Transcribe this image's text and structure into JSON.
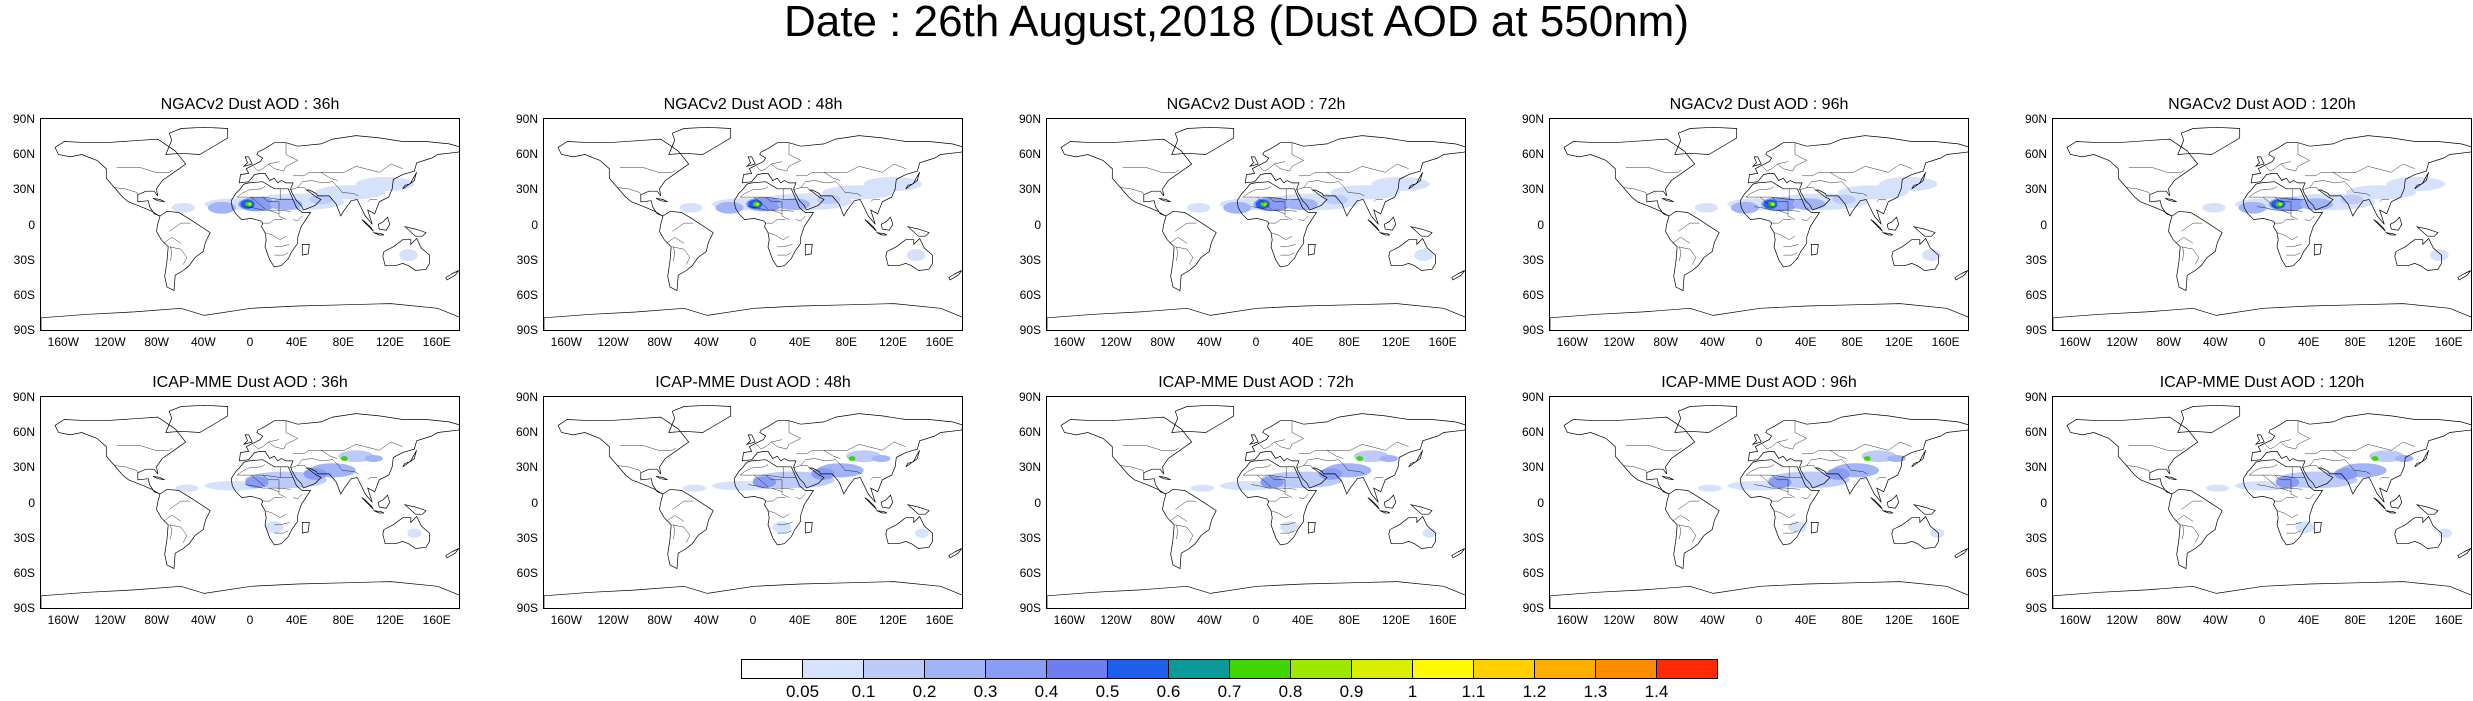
{
  "title": "Date : 26th August,2018 (Dust AOD at 550nm)",
  "lat_labels": [
    "90N",
    "60N",
    "30N",
    "0",
    "30S",
    "60S",
    "90S"
  ],
  "lon_labels": [
    "160W",
    "120W",
    "80W",
    "40W",
    "0",
    "40E",
    "80E",
    "120E",
    "160E"
  ],
  "panels": [
    {
      "title": "NGACv2 Dust AOD : 36h",
      "row": 0,
      "col": 0
    },
    {
      "title": "NGACv2 Dust AOD : 48h",
      "row": 0,
      "col": 1
    },
    {
      "title": "NGACv2 Dust AOD : 72h",
      "row": 0,
      "col": 2
    },
    {
      "title": "NGACv2 Dust AOD : 96h",
      "row": 0,
      "col": 3
    },
    {
      "title": "NGACv2 Dust AOD : 120h",
      "row": 0,
      "col": 4
    },
    {
      "title": "ICAP-MME Dust AOD : 36h",
      "row": 1,
      "col": 0
    },
    {
      "title": "ICAP-MME Dust AOD : 48h",
      "row": 1,
      "col": 1
    },
    {
      "title": "ICAP-MME Dust AOD : 72h",
      "row": 1,
      "col": 2
    },
    {
      "title": "ICAP-MME Dust AOD : 96h",
      "row": 1,
      "col": 3
    },
    {
      "title": "ICAP-MME Dust AOD : 120h",
      "row": 1,
      "col": 4
    }
  ],
  "colorbar": {
    "labels": [
      "0.05",
      "0.1",
      "0.2",
      "0.3",
      "0.4",
      "0.5",
      "0.6",
      "0.7",
      "0.8",
      "0.9",
      "1",
      "1.1",
      "1.2",
      "1.3",
      "1.4"
    ],
    "colors": [
      "#ffffff",
      "#d6e1fb",
      "#bccbfa",
      "#a2b4f7",
      "#8a9df5",
      "#6d7df2",
      "#1f5ff0",
      "#0b9a9a",
      "#3fd600",
      "#9ee800",
      "#d8f000",
      "#fffa00",
      "#ffcf00",
      "#ffad00",
      "#ff8c00",
      "#ff2a00"
    ]
  }
}
